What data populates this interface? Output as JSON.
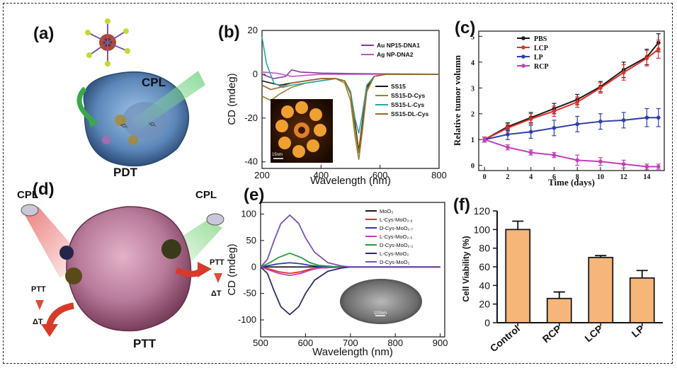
{
  "panels": {
    "a": {
      "label": "(a)",
      "arrow_text": "CPL",
      "caption": "PDT",
      "inset_labels": [
        "¹O₂",
        "¹O₂"
      ]
    },
    "b": {
      "label": "(b)"
    },
    "c": {
      "label": "(c)"
    },
    "d": {
      "label": "(d)",
      "cpl_left": "CPL",
      "cpl_right": "CPL",
      "ptt_left": "PTT",
      "dt_left": "ΔT",
      "ptt_right": "PTT",
      "dt_right": "ΔT",
      "caption": "PTT"
    },
    "e": {
      "label": "(e)"
    },
    "f": {
      "label": "(f)"
    }
  },
  "colors": {
    "bar_fill": "#f7b679",
    "bar_stroke": "#1a1a1a"
  },
  "chart_data": [
    {
      "id": "b",
      "type": "line",
      "xlabel": "Wavelength (nm)",
      "ylabel": "CD (mdeg)",
      "xlim": [
        200,
        800
      ],
      "ylim": [
        -43,
        20
      ],
      "xticks": [
        200,
        400,
        600,
        800
      ],
      "yticks": [
        20,
        0,
        -20,
        -40
      ],
      "inset_scale": "15nm",
      "legend_top": [
        "Au NP15-DNA1",
        "Ag NP-DNA2"
      ],
      "legend_bottom": [
        "SS15",
        "SS15-D-Cys",
        "SS15-L-Cys",
        "SS15-DL-Cys"
      ],
      "series": [
        {
          "name": "Au NP15-DNA1",
          "color": "#8a3a9a",
          "x": [
            200,
            240,
            280,
            300,
            330,
            400,
            500,
            600,
            700,
            800
          ],
          "y": [
            0,
            -2,
            -1,
            2,
            1,
            0.5,
            0.3,
            0.2,
            0.1,
            0
          ]
        },
        {
          "name": "Ag NP-DNA2",
          "color": "#c24fc2",
          "x": [
            200,
            250,
            300,
            350,
            400,
            500,
            600,
            700,
            800
          ],
          "y": [
            1,
            0.5,
            -1,
            -0.5,
            0,
            0,
            0,
            0,
            0
          ]
        },
        {
          "name": "SS15",
          "color": "#1a1a1a",
          "x": [
            200,
            230,
            260,
            300,
            350,
            400,
            450,
            480,
            500,
            515,
            528,
            540,
            555,
            580,
            620,
            700,
            800
          ],
          "y": [
            -3,
            -4,
            -5,
            -4,
            -3,
            -2,
            -2,
            -3,
            -8,
            -22,
            -35,
            -22,
            -6,
            -1,
            0,
            0,
            0
          ]
        },
        {
          "name": "SS15-D-Cys",
          "color": "#8a8a2a",
          "x": [
            200,
            230,
            260,
            300,
            350,
            400,
            450,
            480,
            500,
            515,
            528,
            540,
            555,
            580,
            620,
            700,
            800
          ],
          "y": [
            -10,
            -12,
            -9,
            -6,
            -4,
            -3,
            -2,
            -4,
            -12,
            -28,
            -39,
            -26,
            -8,
            -1,
            0,
            0,
            0
          ]
        },
        {
          "name": "SS15-L-Cys",
          "color": "#2aa7a7",
          "x": [
            200,
            215,
            240,
            270,
            300,
            350,
            400,
            450,
            480,
            500,
            515,
            528,
            540,
            555,
            580,
            620,
            700,
            800
          ],
          "y": [
            17,
            5,
            -4,
            -6,
            -5,
            -4,
            -3,
            -2,
            -3,
            -8,
            -20,
            -27,
            -18,
            -5,
            -1,
            0,
            0,
            0
          ]
        },
        {
          "name": "SS15-DL-Cys",
          "color": "#a0642a",
          "x": [
            200,
            230,
            260,
            300,
            350,
            400,
            450,
            480,
            500,
            515,
            528,
            540,
            555,
            580,
            620,
            700,
            800
          ],
          "y": [
            -5,
            -7,
            -6,
            -4,
            -3,
            -2,
            -2,
            -3,
            -9,
            -24,
            -36,
            -24,
            -7,
            -1,
            0,
            0,
            0
          ]
        }
      ]
    },
    {
      "id": "c",
      "type": "line",
      "xlabel": "Time (days)",
      "ylabel": "Relative tumor volumn",
      "xlim": [
        -0.5,
        15.5
      ],
      "ylim": [
        -0.2,
        5.2
      ],
      "xticks": [
        0,
        2,
        4,
        6,
        8,
        10,
        12,
        14
      ],
      "yticks": [
        0,
        1,
        2,
        3,
        4,
        5
      ],
      "series": [
        {
          "name": "PBS",
          "color": "#1a1a1a",
          "x": [
            0,
            2,
            4,
            6,
            8,
            10,
            12,
            14,
            15
          ],
          "y": [
            1.0,
            1.5,
            1.85,
            2.2,
            2.55,
            3.05,
            3.7,
            4.2,
            4.75
          ],
          "err": [
            0.1,
            0.15,
            0.2,
            0.2,
            0.2,
            0.2,
            0.3,
            0.3,
            0.35
          ]
        },
        {
          "name": "LCP",
          "color": "#e0302a",
          "x": [
            0,
            2,
            4,
            6,
            8,
            10,
            12,
            14,
            15
          ],
          "y": [
            1.0,
            1.45,
            1.8,
            2.1,
            2.45,
            3.0,
            3.6,
            4.15,
            4.5
          ],
          "err": [
            0.1,
            0.15,
            0.2,
            0.2,
            0.2,
            0.2,
            0.3,
            0.3,
            0.35
          ]
        },
        {
          "name": "LP",
          "color": "#2f3fa8",
          "x": [
            0,
            2,
            4,
            6,
            8,
            10,
            12,
            14,
            15
          ],
          "y": [
            1.0,
            1.2,
            1.3,
            1.45,
            1.6,
            1.7,
            1.75,
            1.85,
            1.85
          ],
          "err": [
            0.1,
            0.2,
            0.25,
            0.3,
            0.3,
            0.3,
            0.3,
            0.35,
            0.35
          ]
        },
        {
          "name": "RCP",
          "color": "#c040b8",
          "x": [
            0,
            2,
            4,
            6,
            8,
            10,
            12,
            14,
            15
          ],
          "y": [
            1.0,
            0.7,
            0.5,
            0.4,
            0.2,
            0.15,
            0.05,
            -0.05,
            -0.05
          ],
          "err": [
            0.1,
            0.1,
            0.1,
            0.1,
            0.2,
            0.15,
            0.15,
            0.1,
            0.1
          ]
        }
      ]
    },
    {
      "id": "e",
      "type": "line",
      "xlabel": "Wavelength (nm)",
      "ylabel": "CD (mdeg)",
      "xlim": [
        500,
        910
      ],
      "ylim": [
        -132,
        122
      ],
      "xticks": [
        500,
        600,
        700,
        800,
        900
      ],
      "yticks": [
        100,
        50,
        0,
        -50,
        -100
      ],
      "inset_scale": "100nm",
      "series": [
        {
          "name": "MoO₃",
          "color": "#1a1a1a",
          "x": [
            500,
            600,
            700,
            800,
            900
          ],
          "y": [
            0,
            0,
            0,
            0,
            0
          ]
        },
        {
          "name": "L-Cys-MoO₃.₈",
          "color": "#e0302a",
          "x": [
            500,
            520,
            540,
            565,
            590,
            610,
            630,
            660,
            700,
            800,
            900
          ],
          "y": [
            0,
            -4,
            -9,
            -12,
            -9,
            -4,
            -2,
            -1,
            0,
            0,
            0
          ]
        },
        {
          "name": "D-Cys-MoO₂.₇",
          "color": "#2f3fa8",
          "x": [
            500,
            520,
            540,
            565,
            590,
            610,
            630,
            660,
            700,
            800,
            900
          ],
          "y": [
            0,
            3,
            6,
            8,
            6,
            3,
            1,
            0,
            0,
            0,
            0
          ]
        },
        {
          "name": "L-Cys-MoO₂.₅",
          "color": "#c040b8",
          "x": [
            500,
            520,
            540,
            565,
            590,
            610,
            630,
            660,
            700,
            800,
            900
          ],
          "y": [
            0,
            -6,
            -12,
            -16,
            -12,
            -6,
            -2,
            -1,
            0,
            0,
            0
          ]
        },
        {
          "name": "D-Cys-MoO₂.₂",
          "color": "#2a9a3a",
          "x": [
            500,
            520,
            540,
            565,
            590,
            610,
            630,
            660,
            700,
            800,
            900
          ],
          "y": [
            0,
            8,
            18,
            26,
            18,
            8,
            3,
            1,
            0,
            0,
            0
          ]
        },
        {
          "name": "L-Cys-MoO₂",
          "color": "#2a2e6a",
          "x": [
            500,
            515,
            530,
            545,
            565,
            585,
            600,
            620,
            650,
            680,
            700,
            800,
            900
          ],
          "y": [
            0,
            -12,
            -45,
            -75,
            -90,
            -75,
            -50,
            -25,
            -8,
            -2,
            0,
            0,
            0
          ]
        },
        {
          "name": "D-Cys-MoO₂",
          "color": "#7a4fb8",
          "x": [
            500,
            515,
            530,
            545,
            565,
            585,
            600,
            620,
            650,
            680,
            700,
            800,
            900
          ],
          "y": [
            0,
            14,
            50,
            82,
            98,
            82,
            55,
            28,
            8,
            2,
            0,
            0,
            0
          ]
        }
      ]
    },
    {
      "id": "f",
      "type": "bar",
      "ylabel": "Cell Viability  (%)",
      "ylim": [
        0,
        120
      ],
      "yticks": [
        0,
        20,
        40,
        60,
        80,
        100,
        120
      ],
      "categories": [
        "Control",
        "RCP",
        "LCP",
        "LP"
      ],
      "values": [
        100,
        26,
        70,
        48
      ],
      "errors": [
        9,
        7,
        2,
        8
      ]
    }
  ]
}
